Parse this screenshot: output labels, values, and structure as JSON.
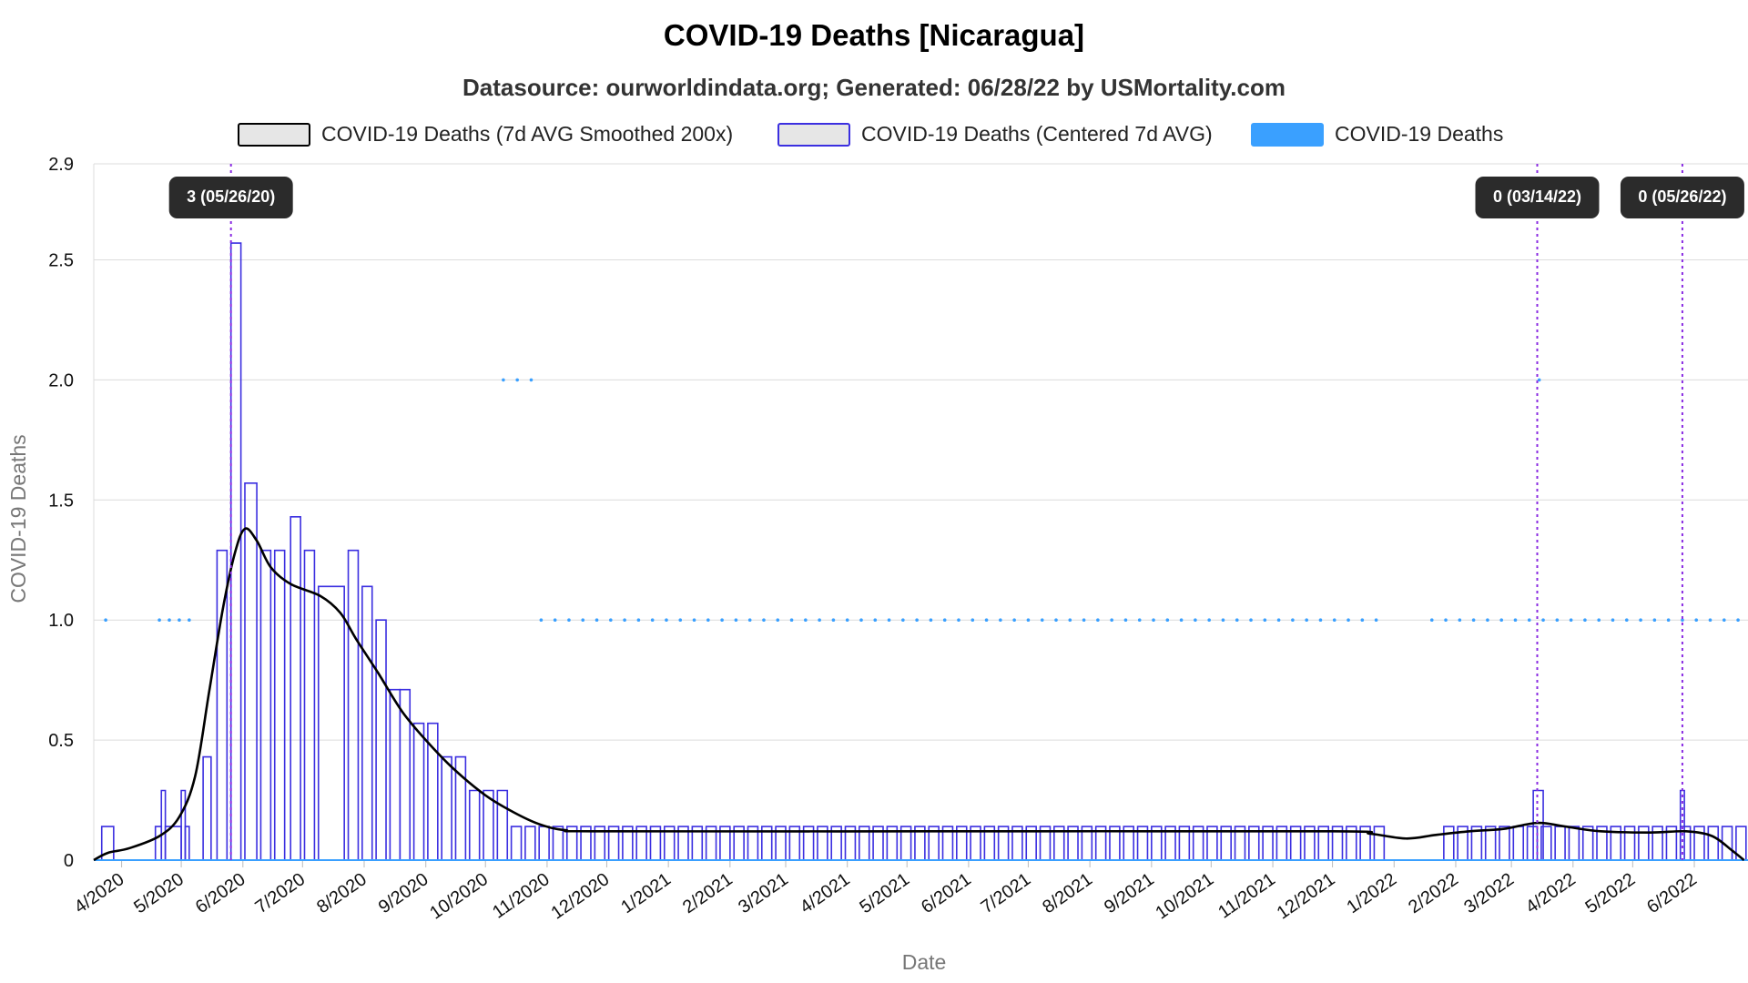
{
  "chart_data": {
    "type": "line",
    "title": "COVID-19 Deaths [Nicaragua]",
    "subtitle": "Datasource: ourworldindata.org; Generated: 06/28/22 by USMortality.com",
    "xlabel": "Date",
    "ylabel": "COVID-19 Deaths",
    "x_range": [
      "2020-03-18",
      "2022-06-28"
    ],
    "ylim": [
      0,
      2.9
    ],
    "y_ticks": [
      "0",
      "0.5",
      "1.0",
      "1.5",
      "2.0",
      "2.5",
      "2.9"
    ],
    "y_tick_values": [
      0,
      0.5,
      1.0,
      1.5,
      2.0,
      2.5,
      2.9
    ],
    "x_ticks": [
      {
        "date": "2020-04-01",
        "label": "4/2020"
      },
      {
        "date": "2020-05-01",
        "label": "5/2020"
      },
      {
        "date": "2020-06-01",
        "label": "6/2020"
      },
      {
        "date": "2020-07-01",
        "label": "7/2020"
      },
      {
        "date": "2020-08-01",
        "label": "8/2020"
      },
      {
        "date": "2020-09-01",
        "label": "9/2020"
      },
      {
        "date": "2020-10-01",
        "label": "10/2020"
      },
      {
        "date": "2020-11-01",
        "label": "11/2020"
      },
      {
        "date": "2020-12-01",
        "label": "12/2020"
      },
      {
        "date": "2021-01-01",
        "label": "1/2021"
      },
      {
        "date": "2021-02-01",
        "label": "2/2021"
      },
      {
        "date": "2021-03-01",
        "label": "3/2021"
      },
      {
        "date": "2021-04-01",
        "label": "4/2021"
      },
      {
        "date": "2021-05-01",
        "label": "5/2021"
      },
      {
        "date": "2021-06-01",
        "label": "6/2021"
      },
      {
        "date": "2021-07-01",
        "label": "7/2021"
      },
      {
        "date": "2021-08-01",
        "label": "8/2021"
      },
      {
        "date": "2021-09-01",
        "label": "9/2021"
      },
      {
        "date": "2021-10-01",
        "label": "10/2021"
      },
      {
        "date": "2021-11-01",
        "label": "11/2021"
      },
      {
        "date": "2021-12-01",
        "label": "12/2021"
      },
      {
        "date": "2022-01-01",
        "label": "1/2022"
      },
      {
        "date": "2022-02-01",
        "label": "2/2022"
      },
      {
        "date": "2022-03-01",
        "label": "3/2022"
      },
      {
        "date": "2022-04-01",
        "label": "4/2022"
      },
      {
        "date": "2022-05-01",
        "label": "5/2022"
      },
      {
        "date": "2022-06-01",
        "label": "6/2022"
      }
    ],
    "grid": true,
    "legend_position": "top",
    "series": [
      {
        "name": "COVID-19 Deaths (7d AVG Smoothed 200x)",
        "style": "line",
        "color": "#000000",
        "points": [
          {
            "x": "2020-03-18",
            "y": 0
          },
          {
            "x": "2020-03-25",
            "y": 0.03
          },
          {
            "x": "2020-04-05",
            "y": 0.05
          },
          {
            "x": "2020-04-20",
            "y": 0.1
          },
          {
            "x": "2020-04-30",
            "y": 0.18
          },
          {
            "x": "2020-05-08",
            "y": 0.35
          },
          {
            "x": "2020-05-15",
            "y": 0.7
          },
          {
            "x": "2020-05-22",
            "y": 1.05
          },
          {
            "x": "2020-05-28",
            "y": 1.28
          },
          {
            "x": "2020-06-02",
            "y": 1.38
          },
          {
            "x": "2020-06-08",
            "y": 1.33
          },
          {
            "x": "2020-06-15",
            "y": 1.22
          },
          {
            "x": "2020-06-25",
            "y": 1.15
          },
          {
            "x": "2020-07-10",
            "y": 1.1
          },
          {
            "x": "2020-07-20",
            "y": 1.03
          },
          {
            "x": "2020-07-28",
            "y": 0.92
          },
          {
            "x": "2020-08-08",
            "y": 0.78
          },
          {
            "x": "2020-08-20",
            "y": 0.62
          },
          {
            "x": "2020-09-01",
            "y": 0.5
          },
          {
            "x": "2020-09-15",
            "y": 0.38
          },
          {
            "x": "2020-10-01",
            "y": 0.27
          },
          {
            "x": "2020-10-15",
            "y": 0.2
          },
          {
            "x": "2020-10-28",
            "y": 0.15
          },
          {
            "x": "2020-11-10",
            "y": 0.125
          },
          {
            "x": "2020-12-01",
            "y": 0.12
          },
          {
            "x": "2021-06-01",
            "y": 0.12
          },
          {
            "x": "2021-12-01",
            "y": 0.12
          },
          {
            "x": "2021-12-20",
            "y": 0.11
          },
          {
            "x": "2022-01-07",
            "y": 0.09
          },
          {
            "x": "2022-01-22",
            "y": 0.105
          },
          {
            "x": "2022-02-08",
            "y": 0.12
          },
          {
            "x": "2022-02-25",
            "y": 0.13
          },
          {
            "x": "2022-03-14",
            "y": 0.155
          },
          {
            "x": "2022-03-28",
            "y": 0.14
          },
          {
            "x": "2022-04-15",
            "y": 0.12
          },
          {
            "x": "2022-05-10",
            "y": 0.115
          },
          {
            "x": "2022-05-28",
            "y": 0.12
          },
          {
            "x": "2022-06-10",
            "y": 0.1
          },
          {
            "x": "2022-06-20",
            "y": 0.04
          },
          {
            "x": "2022-06-26",
            "y": 0
          }
        ]
      },
      {
        "name": "COVID-19 Deaths (Centered 7d AVG)",
        "style": "step",
        "color": "#3b2fe0",
        "segments": [
          {
            "start": "2020-03-22",
            "end": "2020-03-28",
            "y": 0.14
          },
          {
            "start": "2020-04-18",
            "end": "2020-04-21",
            "y": 0.14
          },
          {
            "start": "2020-04-21",
            "end": "2020-04-23",
            "y": 0.29
          },
          {
            "start": "2020-04-23",
            "end": "2020-05-01",
            "y": 0.14
          },
          {
            "start": "2020-05-01",
            "end": "2020-05-03",
            "y": 0.29
          },
          {
            "start": "2020-05-03",
            "end": "2020-05-05",
            "y": 0.14
          },
          {
            "start": "2020-05-12",
            "end": "2020-05-16",
            "y": 0.43
          },
          {
            "start": "2020-05-19",
            "end": "2020-05-24",
            "y": 1.29
          },
          {
            "start": "2020-05-26",
            "end": "2020-05-31",
            "y": 2.57
          },
          {
            "start": "2020-06-02",
            "end": "2020-06-08",
            "y": 1.57
          },
          {
            "start": "2020-06-10",
            "end": "2020-06-15",
            "y": 1.29
          },
          {
            "start": "2020-06-17",
            "end": "2020-06-22",
            "y": 1.29
          },
          {
            "start": "2020-06-25",
            "end": "2020-06-30",
            "y": 1.43
          },
          {
            "start": "2020-07-02",
            "end": "2020-07-07",
            "y": 1.29
          },
          {
            "start": "2020-07-09",
            "end": "2020-07-22",
            "y": 1.14
          },
          {
            "start": "2020-07-24",
            "end": "2020-07-29",
            "y": 1.29
          },
          {
            "start": "2020-07-31",
            "end": "2020-08-05",
            "y": 1.14
          },
          {
            "start": "2020-08-07",
            "end": "2020-08-12",
            "y": 1.0
          },
          {
            "start": "2020-08-14",
            "end": "2020-08-19",
            "y": 0.71
          },
          {
            "start": "2020-08-19",
            "end": "2020-08-24",
            "y": 0.71
          },
          {
            "start": "2020-08-26",
            "end": "2020-08-31",
            "y": 0.57
          },
          {
            "start": "2020-09-02",
            "end": "2020-09-07",
            "y": 0.57
          },
          {
            "start": "2020-09-09",
            "end": "2020-09-14",
            "y": 0.43
          },
          {
            "start": "2020-09-16",
            "end": "2020-09-21",
            "y": 0.43
          },
          {
            "start": "2020-09-23",
            "end": "2020-09-28",
            "y": 0.29
          },
          {
            "start": "2020-09-30",
            "end": "2020-10-05",
            "y": 0.29
          },
          {
            "start": "2020-10-07",
            "end": "2020-10-12",
            "y": 0.29
          },
          {
            "start": "2020-10-14",
            "end": "2020-10-19",
            "y": 0.14
          }
        ],
        "weekly_pattern": {
          "start": "2020-10-21",
          "end": "2022-06-24",
          "period_days": 7,
          "high_days": 5,
          "y": 0.14,
          "gap_start": "2021-12-28",
          "gap_end": "2022-01-25"
        },
        "spikes": [
          {
            "start": "2022-03-12",
            "end": "2022-03-17",
            "y": 0.29
          },
          {
            "start": "2022-05-25",
            "end": "2022-05-27",
            "y": 0.29
          }
        ]
      },
      {
        "name": "COVID-19 Deaths",
        "style": "points",
        "color": "#3aa0ff",
        "nonzero_points": [
          {
            "x": "2020-03-24",
            "y": 1
          },
          {
            "x": "2020-04-20",
            "y": 1
          },
          {
            "x": "2020-04-25",
            "y": 1
          },
          {
            "x": "2020-04-30",
            "y": 1
          },
          {
            "x": "2020-05-05",
            "y": 1
          },
          {
            "x": "2020-10-10",
            "y": 2
          },
          {
            "x": "2020-10-17",
            "y": 2
          },
          {
            "x": "2020-10-24",
            "y": 2
          },
          {
            "x": "2022-03-15",
            "y": 2
          }
        ],
        "weekly_points": {
          "start": "2020-10-29",
          "end": "2022-06-23",
          "period_days": 7,
          "y": 1,
          "gap_start": "2021-12-30",
          "gap_end": "2022-01-18"
        }
      }
    ],
    "legend": [
      {
        "label": "COVID-19 Deaths (7d AVG Smoothed 200x)",
        "fill": "#e6e6e6",
        "stroke": "#000000"
      },
      {
        "label": "COVID-19 Deaths (Centered 7d AVG)",
        "fill": "#e6e6e6",
        "stroke": "#3b2fe0"
      },
      {
        "label": "COVID-19 Deaths",
        "fill": "#3aa0ff",
        "stroke": "#3aa0ff"
      }
    ],
    "annotations": [
      {
        "x": "2020-05-26",
        "label": "3 (05/26/20)"
      },
      {
        "x": "2022-03-14",
        "label": "0 (03/14/22)"
      },
      {
        "x": "2022-05-26",
        "label": "0 (05/26/22)"
      }
    ]
  }
}
